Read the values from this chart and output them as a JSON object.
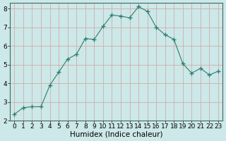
{
  "x": [
    0,
    1,
    2,
    3,
    4,
    5,
    6,
    7,
    8,
    9,
    10,
    11,
    12,
    13,
    14,
    15,
    16,
    17,
    18,
    19,
    20,
    21,
    22,
    23
  ],
  "y": [
    2.35,
    2.7,
    2.75,
    2.75,
    3.9,
    4.6,
    5.3,
    5.55,
    6.4,
    6.35,
    7.05,
    7.65,
    7.6,
    7.5,
    8.1,
    7.85,
    7.0,
    6.6,
    6.35,
    5.05,
    4.55,
    4.8,
    4.45,
    4.65
  ],
  "xlabel": "Humidex (Indice chaleur)",
  "ylim": [
    2,
    8.3
  ],
  "xlim": [
    -0.5,
    23.5
  ],
  "yticks": [
    2,
    3,
    4,
    5,
    6,
    7,
    8
  ],
  "xticks": [
    0,
    1,
    2,
    3,
    4,
    5,
    6,
    7,
    8,
    9,
    10,
    11,
    12,
    13,
    14,
    15,
    16,
    17,
    18,
    19,
    20,
    21,
    22,
    23
  ],
  "line_color": "#2e7d6e",
  "bg_color": "#cce8e8",
  "grid_color": "#d4a0a0",
  "label_fontsize": 7.5,
  "tick_fontsize": 6.5
}
